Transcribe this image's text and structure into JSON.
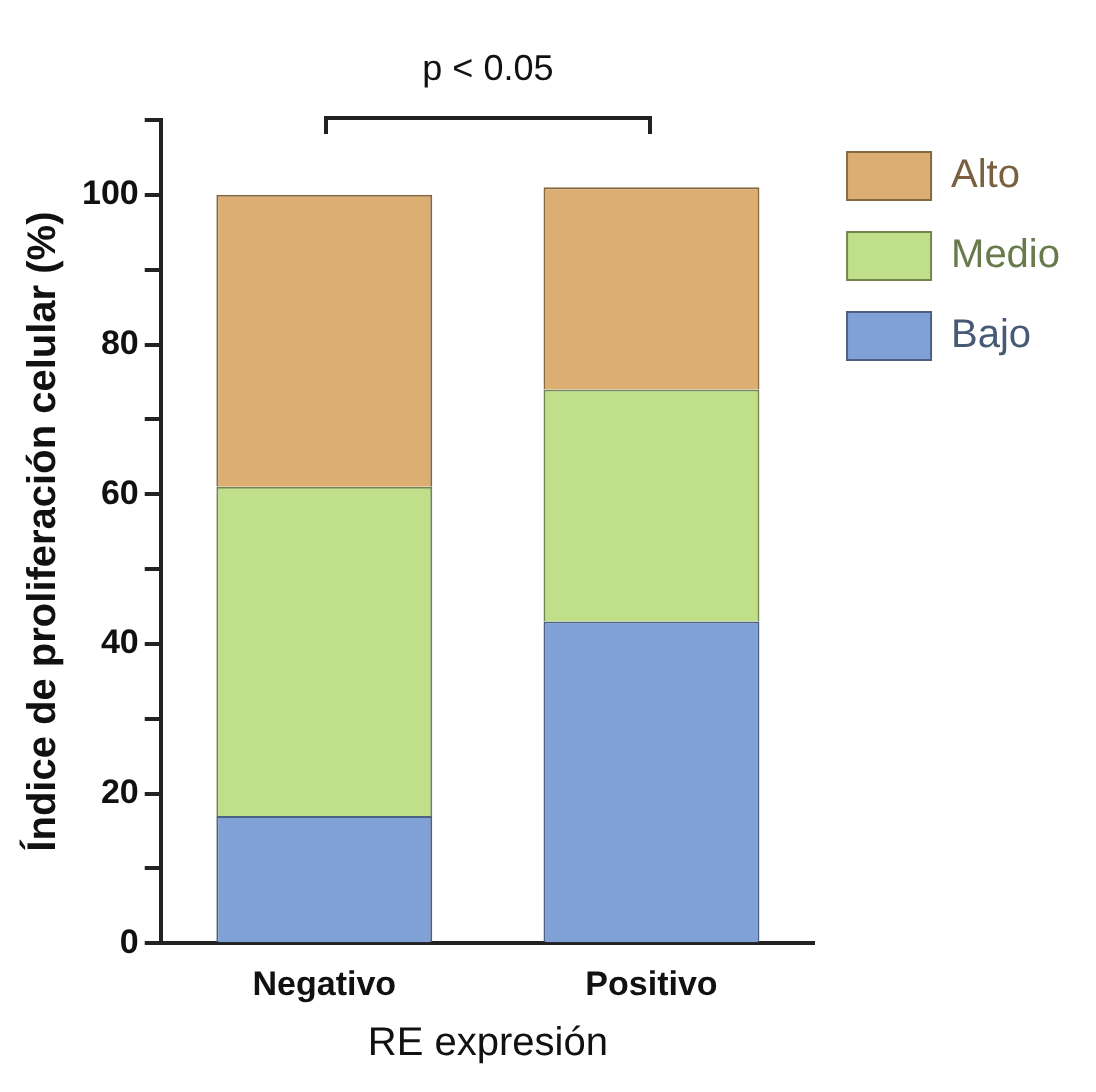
{
  "chart_data": {
    "type": "bar",
    "stacked": true,
    "categories": [
      "Negativo",
      "Positivo"
    ],
    "series": [
      {
        "name": "Bajo",
        "color": "#7fa1d5",
        "values": [
          17,
          43
        ]
      },
      {
        "name": "Medio",
        "color": "#bfdf88",
        "values": [
          44,
          31
        ]
      },
      {
        "name": "Alto",
        "color": "#ddae72",
        "values": [
          39,
          27
        ]
      }
    ],
    "xlabel": "RE expresión",
    "ylabel": "Índice de proliferación celular (%)",
    "ylim": [
      0,
      110
    ],
    "yticks": [
      0,
      {
        "value": 10,
        "label": null
      },
      20,
      {
        "value": 30,
        "label": null
      },
      40,
      {
        "value": 50,
        "label": null
      },
      60,
      {
        "value": 70,
        "label": null
      },
      80,
      {
        "value": 90,
        "label": null
      },
      100,
      {
        "value": 110,
        "label": null
      }
    ],
    "annotations": [
      "p < 0.05"
    ],
    "legend": "right",
    "grid": false
  }
}
